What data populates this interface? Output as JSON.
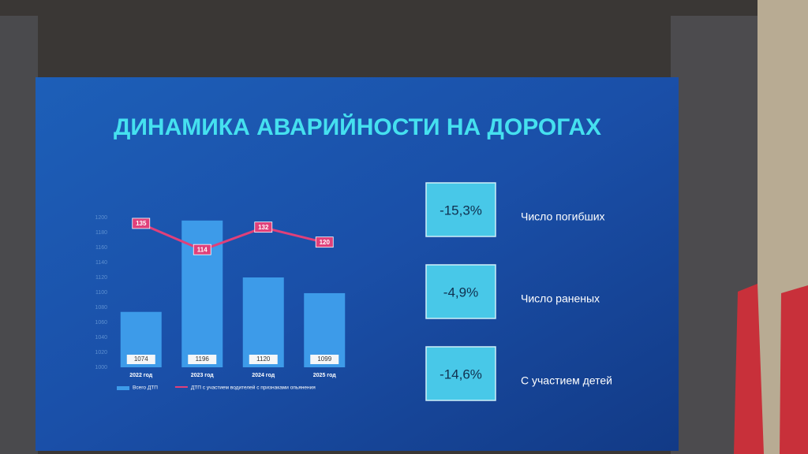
{
  "chart_data": {
    "type": "bar",
    "title": "ДИНАМИКА АВАРИЙНОСТИ НА ДОРОГАХ",
    "categories": [
      "2022 год",
      "2023 год",
      "2024 год",
      "2025 год"
    ],
    "series": [
      {
        "name": "Всего ДТП",
        "color": "#3d9be9",
        "values": [
          1074,
          1196,
          1120,
          1099
        ]
      },
      {
        "name": "ДТП с участием водителей с признаками опьянения",
        "color": "#e0407a",
        "type": "line",
        "axis": "y2",
        "values": [
          135,
          114,
          132,
          120
        ]
      }
    ],
    "ylim": [
      1000,
      1200
    ],
    "yticks": [
      1000,
      1020,
      1040,
      1060,
      1080,
      1100,
      1120,
      1140,
      1160,
      1180,
      1200
    ],
    "y2lim": [
      20,
      140
    ],
    "grid": false
  },
  "stats": [
    {
      "value": "-15,3%",
      "label": "Число погибших"
    },
    {
      "value": "-4,9%",
      "label": "Число раненых"
    },
    {
      "value": "-14,6%",
      "label": "С участием детей"
    }
  ]
}
